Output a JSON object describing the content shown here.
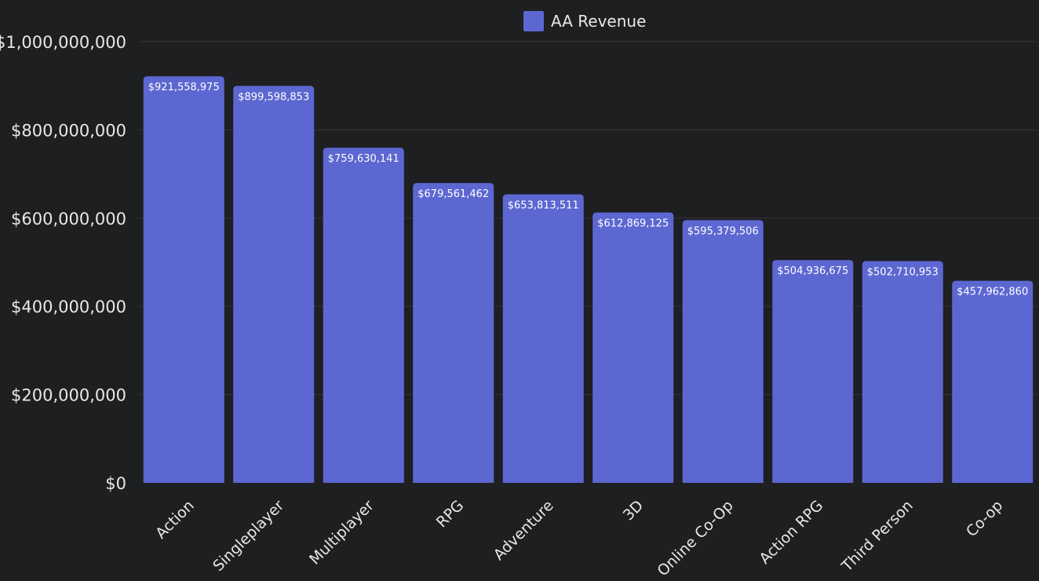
{
  "chart_data": {
    "type": "bar",
    "categories": [
      "Action",
      "Singleplayer",
      "Multiplayer",
      "RPG",
      "Adventure",
      "3D",
      "Online Co-Op",
      "Action RPG",
      "Third Person",
      "Co-op"
    ],
    "series": [
      {
        "name": "AA Revenue",
        "values": [
          921558975,
          899598853,
          759630141,
          679561462,
          653813511,
          612869125,
          595379506,
          504936675,
          502710953,
          457962860
        ],
        "labels": [
          "$921,558,975",
          "$899,598,853",
          "$759,630,141",
          "$679,561,462",
          "$653,813,511",
          "$612,869,125",
          "$595,379,506",
          "$504,936,675",
          "$502,710,953",
          "$457,962,860"
        ],
        "color": "#5c67d1"
      }
    ],
    "ylim": [
      0,
      1000000000
    ],
    "yticks": [
      0,
      200000000,
      400000000,
      600000000,
      800000000,
      1000000000
    ],
    "ytick_labels": [
      "$0",
      "$200,000,000",
      "$400,000,000",
      "$600,000,000",
      "$800,000,000",
      "$1,000,000,000"
    ],
    "grid": true,
    "legend_position": "top-center"
  },
  "colors": {
    "background": "#1e1f21",
    "gridline": "#333437",
    "text": "#e8e8ea"
  }
}
